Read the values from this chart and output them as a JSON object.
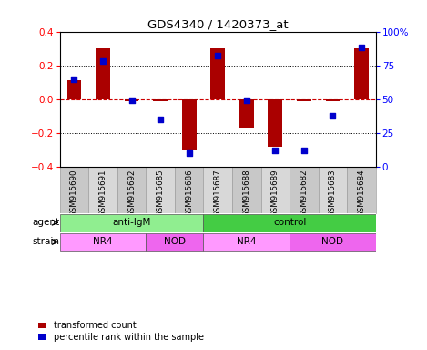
{
  "title": "GDS4340 / 1420373_at",
  "samples": [
    "GSM915690",
    "GSM915691",
    "GSM915692",
    "GSM915685",
    "GSM915686",
    "GSM915687",
    "GSM915688",
    "GSM915689",
    "GSM915682",
    "GSM915683",
    "GSM915684"
  ],
  "red_values": [
    0.11,
    0.3,
    -0.01,
    -0.01,
    -0.3,
    0.3,
    -0.17,
    -0.28,
    -0.01,
    -0.01,
    0.3
  ],
  "blue_values": [
    65,
    78,
    49,
    35,
    10,
    82,
    49,
    12,
    12,
    38,
    88
  ],
  "ylim_red": [
    -0.4,
    0.4
  ],
  "ylim_blue": [
    0,
    100
  ],
  "yticks_red": [
    -0.4,
    -0.2,
    0.0,
    0.2,
    0.4
  ],
  "yticks_blue": [
    0,
    25,
    50,
    75,
    100
  ],
  "ytick_labels_blue": [
    "0",
    "25",
    "50",
    "75",
    "100%"
  ],
  "agent_groups": [
    {
      "label": "anti-IgM",
      "start": 0,
      "end": 5,
      "color": "#90EE90"
    },
    {
      "label": "control",
      "start": 5,
      "end": 11,
      "color": "#44CC44"
    }
  ],
  "strain_groups": [
    {
      "label": "NR4",
      "start": 0,
      "end": 3,
      "color": "#FF99FF"
    },
    {
      "label": "NOD",
      "start": 3,
      "end": 5,
      "color": "#EE66EE"
    },
    {
      "label": "NR4",
      "start": 5,
      "end": 8,
      "color": "#FF99FF"
    },
    {
      "label": "NOD",
      "start": 8,
      "end": 11,
      "color": "#EE66EE"
    }
  ],
  "bar_color": "#AA0000",
  "dot_color": "#0000CC",
  "bar_width": 0.5,
  "dot_size": 18,
  "zero_line_color": "#CC0000",
  "bg_color": "#FFFFFF",
  "legend_red_label": "transformed count",
  "legend_blue_label": "percentile rank within the sample",
  "agent_label": "agent",
  "strain_label": "strain"
}
